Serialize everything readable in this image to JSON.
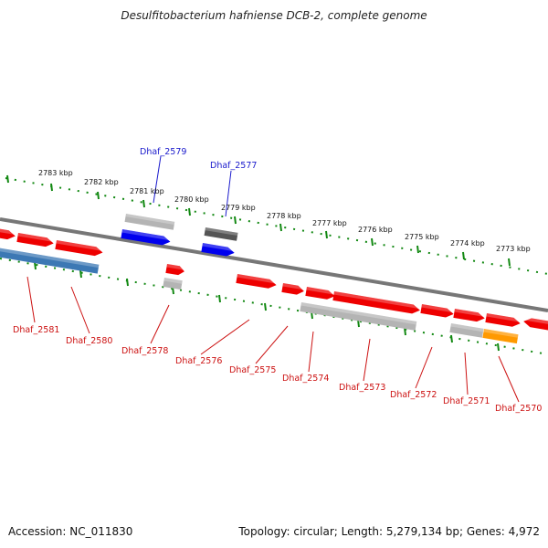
{
  "title": "Desulfitobacterium hafniense DCB-2, complete genome",
  "footer": {
    "accession": "Accession: NC_011830",
    "summary": "Topology: circular; Length: 5,279,134 bp; Genes: 4,972"
  },
  "colors": {
    "backbone": "#777777",
    "gene_red": "#ee0000",
    "gene_blue": "#0000ee",
    "gene_steel": "#3c78b4",
    "gene_lightgray": "#b4b4b4",
    "gene_darkgray": "#555555",
    "gene_orange": "#ff9900",
    "tick_green": "#118811",
    "label_top": "#1a1acc",
    "label_bottom": "#cc1111"
  },
  "scale_labels": [
    "2783 kbp",
    "2782 kbp",
    "2781 kbp",
    "2780 kbp",
    "2779 kbp",
    "2778 kbp",
    "2777 kbp",
    "2776 kbp",
    "2775 kbp",
    "2774 kbp",
    "2773 kbp"
  ],
  "top_gene_labels": [
    "Dhaf_2579",
    "Dhaf_2577"
  ],
  "bottom_gene_labels": [
    "Dhaf_2581",
    "Dhaf_2580",
    "Dhaf_2578",
    "Dhaf_2576",
    "Dhaf_2575",
    "Dhaf_2574",
    "Dhaf_2573",
    "Dhaf_2572",
    "Dhaf_2571",
    "Dhaf_2570"
  ]
}
